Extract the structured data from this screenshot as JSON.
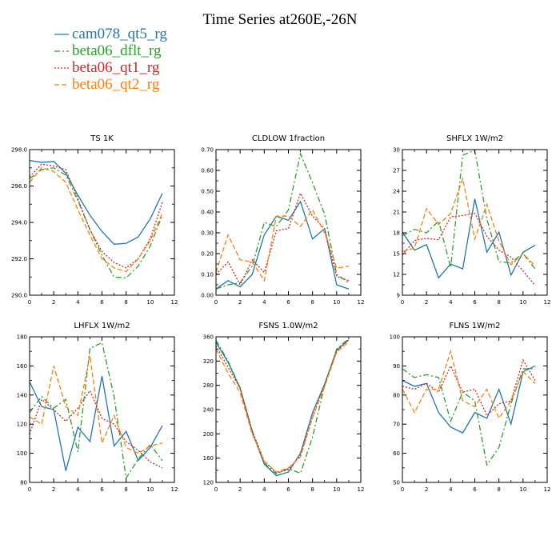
{
  "title": "Time Series at260E,-26N",
  "colors": {
    "cam078_qt5_rg": "#1f77b4",
    "beta06_dflt_rg": "#2ca02c",
    "beta06_qt1_rg": "#d62728",
    "beta06_qt2_rg": "#ff7f0e"
  },
  "legend": [
    {
      "name": "cam078_qt5_rg",
      "color": "#1f77b4",
      "dash": "solid"
    },
    {
      "name": "beta06_dflt_rg",
      "color": "#2ca02c",
      "dash": "dashdot"
    },
    {
      "name": "beta06_qt1_rg",
      "color": "#d62728",
      "dash": "dotted"
    },
    {
      "name": "beta06_qt2_rg",
      "color": "#ff7f0e",
      "dash": "dashed"
    }
  ],
  "chart_data": [
    {
      "type": "line",
      "title": "TS   1K",
      "x": [
        0,
        1,
        2,
        3,
        4,
        5,
        6,
        7,
        8,
        9,
        10,
        11
      ],
      "xlim": [
        0,
        12
      ],
      "xticks": [
        "0",
        "2",
        "4",
        "6",
        "8",
        "10",
        "12"
      ],
      "ylim": [
        290.0,
        298.0
      ],
      "yticks": [
        "290.0",
        "292.0",
        "294.0",
        "296.0",
        "298.0"
      ],
      "series": [
        {
          "name": "cam078_qt5_rg",
          "values": [
            297.4,
            297.3,
            297.35,
            296.7,
            295.5,
            294.4,
            293.5,
            292.8,
            292.85,
            293.2,
            294.2,
            295.6
          ]
        },
        {
          "name": "beta06_dflt_rg",
          "values": [
            296.4,
            296.9,
            297.0,
            296.6,
            295.2,
            293.6,
            292.2,
            291.0,
            290.95,
            291.6,
            292.7,
            294.4
          ]
        },
        {
          "name": "beta06_qt1_rg",
          "values": [
            296.5,
            297.2,
            297.1,
            296.9,
            295.3,
            293.6,
            292.4,
            291.8,
            291.5,
            292.0,
            293.1,
            295.1
          ]
        },
        {
          "name": "beta06_qt2_rg",
          "values": [
            296.2,
            297.0,
            296.8,
            296.2,
            294.7,
            293.3,
            292.0,
            291.5,
            291.3,
            292.0,
            293.0,
            294.5
          ]
        }
      ]
    },
    {
      "type": "line",
      "title": "CLDLOW   1fraction",
      "x": [
        0,
        1,
        2,
        3,
        4,
        5,
        6,
        7,
        8,
        9,
        10,
        11
      ],
      "xlim": [
        0,
        12
      ],
      "xticks": [
        "0",
        "2",
        "4",
        "6",
        "8",
        "10",
        "12"
      ],
      "ylim": [
        0.0,
        0.7
      ],
      "yticks": [
        "0.00",
        "0.10",
        "0.20",
        "0.30",
        "0.40",
        "0.50",
        "0.60",
        "0.70"
      ],
      "series": [
        {
          "name": "cam078_qt5_rg",
          "values": [
            0.03,
            0.07,
            0.04,
            0.1,
            0.29,
            0.38,
            0.36,
            0.45,
            0.27,
            0.32,
            0.05,
            0.03
          ]
        },
        {
          "name": "beta06_dflt_rg",
          "values": [
            0.03,
            0.05,
            0.06,
            0.14,
            0.35,
            0.33,
            0.41,
            0.68,
            0.54,
            0.39,
            0.1,
            0.06
          ]
        },
        {
          "name": "beta06_qt1_rg",
          "values": [
            0.1,
            0.16,
            0.05,
            0.17,
            0.11,
            0.31,
            0.32,
            0.49,
            0.38,
            0.32,
            0.09,
            0.07
          ]
        },
        {
          "name": "beta06_qt2_rg",
          "values": [
            0.11,
            0.29,
            0.17,
            0.16,
            0.07,
            0.38,
            0.38,
            0.33,
            0.41,
            0.3,
            0.13,
            0.14
          ]
        }
      ]
    },
    {
      "type": "line",
      "title": "SHFLX   1W/m2",
      "x": [
        0,
        1,
        2,
        3,
        4,
        5,
        6,
        7,
        8,
        9,
        10,
        11
      ],
      "xlim": [
        0,
        12
      ],
      "xticks": [
        "0",
        "2",
        "4",
        "6",
        "8",
        "10",
        "12"
      ],
      "ylim": [
        9,
        30
      ],
      "yticks": [
        "9",
        "12",
        "15",
        "18",
        "21",
        "24",
        "27",
        "30"
      ],
      "series": [
        {
          "name": "cam078_qt5_rg",
          "values": [
            18.1,
            15.5,
            16.3,
            11.5,
            13.5,
            12.8,
            22.9,
            15.2,
            18.1,
            11.9,
            15.2,
            16.2
          ]
        },
        {
          "name": "beta06_dflt_rg",
          "values": [
            17.6,
            18.5,
            18.0,
            19.7,
            13.0,
            29.2,
            29.9,
            20.0,
            13.8,
            13.7,
            15.0,
            12.8
          ]
        },
        {
          "name": "beta06_qt1_rg",
          "values": [
            14.8,
            16.9,
            17.2,
            17.0,
            20.3,
            20.5,
            20.8,
            17.5,
            15.5,
            14.5,
            12.5,
            10.4
          ]
        },
        {
          "name": "beta06_qt2_rg",
          "values": [
            15.3,
            15.8,
            21.5,
            19.2,
            20.8,
            25.8,
            17.1,
            22.1,
            16.8,
            13.4,
            15.0,
            13.2
          ]
        }
      ]
    },
    {
      "type": "line",
      "title": "LHFLX   1W/m2",
      "x": [
        0,
        1,
        2,
        3,
        4,
        5,
        6,
        7,
        8,
        9,
        10,
        11
      ],
      "xlim": [
        0,
        12
      ],
      "xticks": [
        "0",
        "2",
        "4",
        "6",
        "8",
        "10",
        "12"
      ],
      "ylim": [
        80,
        180
      ],
      "yticks": [
        "80",
        "100",
        "120",
        "140",
        "160",
        "180"
      ],
      "series": [
        {
          "name": "cam078_qt5_rg",
          "values": [
            149,
            132,
            130,
            88,
            118,
            108,
            153,
            105,
            115,
            95,
            104,
            119
          ]
        },
        {
          "name": "beta06_dflt_rg",
          "values": [
            128,
            139,
            131,
            137,
            101,
            172,
            176,
            139,
            83,
            96,
            106,
            95
          ]
        },
        {
          "name": "beta06_qt1_rg",
          "values": [
            113,
            137,
            130,
            122,
            131,
            143,
            124,
            120,
            108,
            102,
            94,
            90
          ]
        },
        {
          "name": "beta06_qt2_rg",
          "values": [
            125,
            120,
            160,
            132,
            126,
            167,
            107,
            126,
            104,
            100,
            105,
            107
          ]
        }
      ]
    },
    {
      "type": "line",
      "title": "FSNS   1.0W/m2",
      "x": [
        0,
        1,
        2,
        3,
        4,
        5,
        6,
        7,
        8,
        9,
        10,
        11
      ],
      "xlim": [
        0,
        12
      ],
      "xticks": [
        "0",
        "2",
        "4",
        "6",
        "8",
        "10",
        "12"
      ],
      "ylim": [
        120,
        360
      ],
      "yticks": [
        "120",
        "160",
        "200",
        "240",
        "280",
        "320",
        "360"
      ],
      "series": [
        {
          "name": "cam078_qt5_rg",
          "values": [
            351,
            318,
            275,
            203,
            150,
            131,
            137,
            168,
            235,
            282,
            338,
            355
          ]
        },
        {
          "name": "beta06_dflt_rg",
          "values": [
            354,
            320,
            276,
            205,
            152,
            134,
            143,
            135,
            195,
            280,
            340,
            357
          ]
        },
        {
          "name": "beta06_qt1_rg",
          "values": [
            345,
            310,
            275,
            205,
            155,
            136,
            141,
            165,
            228,
            280,
            336,
            356
          ]
        },
        {
          "name": "beta06_qt2_rg",
          "values": [
            340,
            300,
            268,
            200,
            155,
            137,
            144,
            162,
            227,
            278,
            335,
            352
          ]
        }
      ]
    },
    {
      "type": "line",
      "title": "FLNS   1W/m2",
      "x": [
        0,
        1,
        2,
        3,
        4,
        5,
        6,
        7,
        8,
        9,
        10,
        11
      ],
      "xlim": [
        0,
        12
      ],
      "xticks": [
        "0",
        "2",
        "4",
        "6",
        "8",
        "10",
        "12"
      ],
      "ylim": [
        50,
        100
      ],
      "yticks": [
        "50",
        "60",
        "70",
        "80",
        "90",
        "100"
      ],
      "series": [
        {
          "name": "cam078_qt5_rg",
          "values": [
            85,
            83,
            84,
            74,
            69,
            67,
            74,
            72,
            82,
            70,
            88,
            90
          ]
        },
        {
          "name": "beta06_dflt_rg",
          "values": [
            89,
            86,
            87,
            86,
            71,
            81,
            78,
            56,
            62,
            77,
            89,
            89
          ]
        },
        {
          "name": "beta06_qt1_rg",
          "values": [
            83,
            82,
            84,
            81,
            90,
            81,
            82,
            73,
            77,
            78,
            92,
            85
          ]
        },
        {
          "name": "beta06_qt2_rg",
          "values": [
            82,
            74,
            82,
            82,
            95,
            78,
            76,
            82,
            72,
            78,
            88,
            84
          ]
        }
      ]
    }
  ]
}
